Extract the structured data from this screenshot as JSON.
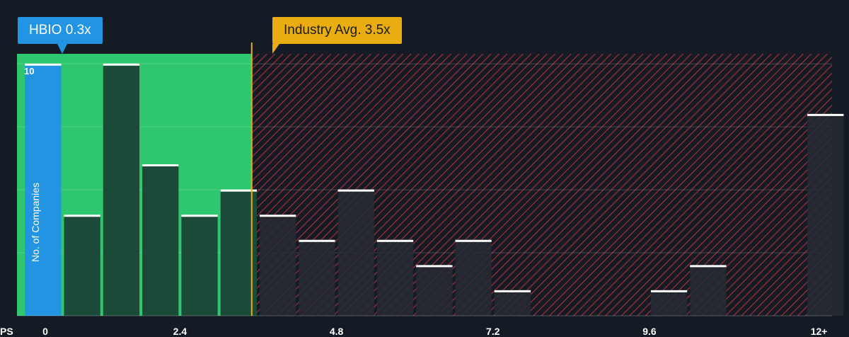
{
  "company": {
    "label": "HBIO 0.3x",
    "value": 0.3,
    "color": "#2394e2"
  },
  "industry": {
    "label": "Industry Avg. 3.5x",
    "value": 3.5,
    "color": "#e9ad12"
  },
  "chart_data": {
    "type": "bar",
    "title": "",
    "xlabel": "PS",
    "ylabel": "No. of Companies",
    "x_ticks": [
      "0",
      "2.4",
      "4.8",
      "7.2",
      "9.6",
      "12+"
    ],
    "x_tick_values": [
      0,
      2.4,
      4.8,
      7.2,
      9.6,
      12.2
    ],
    "y_ticks": [
      "10"
    ],
    "ylim": [
      0,
      10.4
    ],
    "xlim": [
      -0.1,
      12.4
    ],
    "bin_width": 0.6,
    "bin_starts": [
      0,
      0.6,
      1.2,
      1.8,
      2.4,
      3.0,
      3.6,
      4.2,
      4.8,
      5.4,
      6.0,
      6.6,
      7.2,
      7.8,
      8.4,
      9.0,
      9.6,
      10.2,
      10.8,
      11.4,
      12.0
    ],
    "values": [
      10,
      4,
      10,
      6,
      4,
      5,
      4,
      3,
      5,
      3,
      2,
      3,
      1,
      0,
      0,
      0,
      1,
      2,
      0,
      0,
      8
    ],
    "grid": true,
    "colors": {
      "fair_zone": "#2ec76f",
      "overvalued_zone": "#b0303a",
      "bar_dark": "#1c4a38",
      "bar_overvalued": "#262a33",
      "highlight": "#2394e2",
      "bar_cap": "#ffffff"
    }
  }
}
